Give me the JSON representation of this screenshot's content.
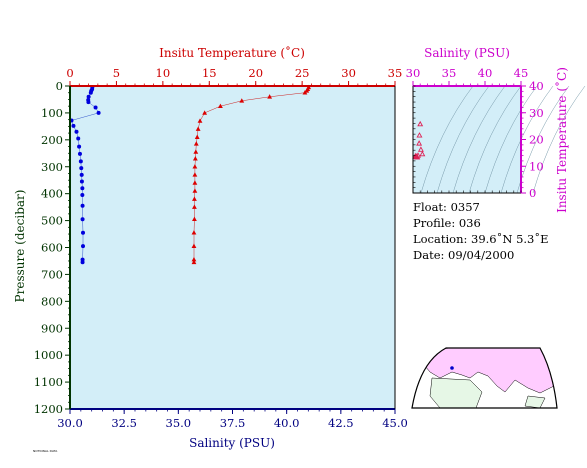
{
  "info": {
    "float": "Float:  0357",
    "profile": "Profile:  036",
    "location": "Location:  39.6˚N   5.3˚E",
    "date": "Date:  09/04/2000"
  },
  "footer_note": "NOTIONAL DATA",
  "chart_data": [
    {
      "type": "scatter",
      "title": "",
      "ylabel": "Pressure (decibar)",
      "xlabel_bottom": "Salinity (PSU)",
      "xlabel_top": "Insitu Temperature (˚C)",
      "ylim": [
        0,
        1200
      ],
      "y_inverted": true,
      "y_ticks": [
        0,
        100,
        200,
        300,
        400,
        500,
        600,
        700,
        800,
        900,
        1000,
        1100,
        1200
      ],
      "x_bottom_lim": [
        30.0,
        45.0
      ],
      "x_bottom_ticks": [
        "30.0",
        "32.5",
        "35.0",
        "37.5",
        "40.0",
        "42.5",
        "45.0"
      ],
      "x_top_lim": [
        0,
        35
      ],
      "x_top_ticks": [
        "0",
        "5",
        "10",
        "15",
        "20",
        "25",
        "30",
        "35"
      ],
      "colors": {
        "salinity": "#0000dd",
        "temperature": "#dd0000",
        "plot_bg": "#d3eef8",
        "top_axis": "#cc0000",
        "bottom_axis": "#000080",
        "y_axis": "#003300"
      },
      "series": [
        {
          "key": "salinity",
          "axis": "bottom",
          "marker": "circle",
          "points": [
            [
              31.03,
              5
            ],
            [
              31.02,
              12
            ],
            [
              30.98,
              18
            ],
            [
              30.96,
              25
            ],
            [
              30.86,
              40
            ],
            [
              30.84,
              52
            ],
            [
              30.85,
              60
            ],
            [
              31.18,
              80
            ],
            [
              31.32,
              100
            ],
            [
              30.07,
              128
            ],
            [
              30.16,
              148
            ],
            [
              30.3,
              170
            ],
            [
              30.38,
              195
            ],
            [
              30.42,
              225
            ],
            [
              30.46,
              252
            ],
            [
              30.5,
              280
            ],
            [
              30.52,
              305
            ],
            [
              30.54,
              330
            ],
            [
              30.55,
              355
            ],
            [
              30.57,
              380
            ],
            [
              30.57,
              405
            ],
            [
              30.58,
              445
            ],
            [
              30.58,
              495
            ],
            [
              30.6,
              545
            ],
            [
              30.6,
              595
            ],
            [
              30.58,
              645
            ],
            [
              30.58,
              655
            ]
          ]
        },
        {
          "key": "temperature",
          "axis": "top",
          "marker": "triangle",
          "points": [
            [
              25.7,
              5
            ],
            [
              25.6,
              12
            ],
            [
              25.5,
              18
            ],
            [
              25.3,
              25
            ],
            [
              21.5,
              40
            ],
            [
              18.5,
              55
            ],
            [
              16.2,
              75
            ],
            [
              14.5,
              100
            ],
            [
              14.0,
              130
            ],
            [
              13.8,
              160
            ],
            [
              13.7,
              190
            ],
            [
              13.6,
              215
            ],
            [
              13.55,
              245
            ],
            [
              13.5,
              270
            ],
            [
              13.45,
              300
            ],
            [
              13.45,
              330
            ],
            [
              13.45,
              360
            ],
            [
              13.45,
              390
            ],
            [
              13.4,
              420
            ],
            [
              13.4,
              450
            ],
            [
              13.4,
              495
            ],
            [
              13.35,
              545
            ],
            [
              13.35,
              595
            ],
            [
              13.35,
              645
            ],
            [
              13.35,
              655
            ]
          ]
        }
      ]
    },
    {
      "type": "scatter",
      "title": "",
      "xlabel": "Salinity (PSU)",
      "ylabel": "Insitu Temperature (˚C)",
      "xlim": [
        30,
        45
      ],
      "x_ticks": [
        "30",
        "35",
        "40",
        "45"
      ],
      "ylim": [
        0,
        40
      ],
      "y_ticks": [
        "0",
        "10",
        "20",
        "30",
        "40"
      ],
      "colors": {
        "axis": "#cc00cc",
        "points": "#dd2255",
        "plot_bg": "#d3eef8",
        "density_lines": "#7799aa"
      },
      "series": [
        {
          "key": "ts",
          "marker": "triangle",
          "points": [
            [
              31.0,
              25.7
            ],
            [
              30.9,
              21.5
            ],
            [
              30.85,
              18.5
            ],
            [
              31.1,
              16.2
            ],
            [
              31.3,
              14.5
            ],
            [
              30.7,
              14.0
            ],
            [
              30.4,
              13.8
            ],
            [
              30.3,
              13.6
            ],
            [
              30.4,
              13.5
            ],
            [
              30.5,
              13.45
            ],
            [
              30.55,
              13.4
            ],
            [
              30.6,
              13.35
            ]
          ]
        }
      ]
    }
  ]
}
